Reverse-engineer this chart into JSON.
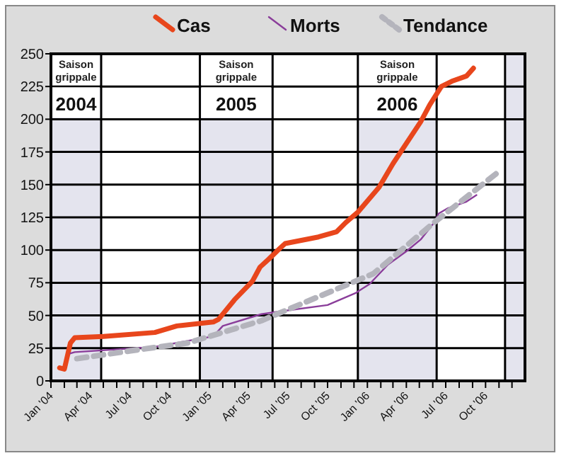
{
  "chart_data": {
    "type": "line",
    "legend": "top",
    "grid": "y",
    "xlim": [
      "2004-01-01",
      "2006-12-31"
    ],
    "xticks": [
      {
        "value": "2004-01",
        "label": "Jan '04"
      },
      {
        "value": "2004-02",
        "label": null
      },
      {
        "value": "2004-03",
        "label": null
      },
      {
        "value": "2004-04",
        "label": "Apr '04"
      },
      {
        "value": "2004-05",
        "label": null
      },
      {
        "value": "2004-06",
        "label": null
      },
      {
        "value": "2004-07",
        "label": "Jul '04"
      },
      {
        "value": "2004-08",
        "label": null
      },
      {
        "value": "2004-09",
        "label": null
      },
      {
        "value": "2004-10",
        "label": "Oct '04"
      },
      {
        "value": "2004-11",
        "label": null
      },
      {
        "value": "2004-12",
        "label": null
      },
      {
        "value": "2005-01",
        "label": "Jan '05"
      },
      {
        "value": "2005-02",
        "label": null
      },
      {
        "value": "2005-03",
        "label": null
      },
      {
        "value": "2005-04",
        "label": "Apr '05"
      },
      {
        "value": "2005-05",
        "label": null
      },
      {
        "value": "2005-06",
        "label": null
      },
      {
        "value": "2005-07",
        "label": "Jul '05"
      },
      {
        "value": "2005-08",
        "label": null
      },
      {
        "value": "2005-09",
        "label": null
      },
      {
        "value": "2005-10",
        "label": "Oct '05"
      },
      {
        "value": "2005-11",
        "label": null
      },
      {
        "value": "2005-12",
        "label": null
      },
      {
        "value": "2006-01",
        "label": "Jan '06"
      },
      {
        "value": "2006-02",
        "label": null
      },
      {
        "value": "2006-03",
        "label": null
      },
      {
        "value": "2006-04",
        "label": "Apr '06"
      },
      {
        "value": "2006-05",
        "label": null
      },
      {
        "value": "2006-06",
        "label": null
      },
      {
        "value": "2006-07",
        "label": "Jul '06"
      },
      {
        "value": "2006-08",
        "label": null
      },
      {
        "value": "2006-09",
        "label": null
      },
      {
        "value": "2006-10",
        "label": "Oct '06"
      },
      {
        "value": "2006-11",
        "label": null
      },
      {
        "value": "2006-12",
        "label": null
      }
    ],
    "ylim": [
      0,
      250
    ],
    "yticks": [
      0,
      25,
      50,
      75,
      100,
      125,
      150,
      175,
      200,
      225,
      250
    ],
    "bands": [
      {
        "axis": "x",
        "from": "2004-01-01",
        "to": "2004-04-26",
        "label": "Saison grippale 2004",
        "color": "#e4e4ee"
      },
      {
        "axis": "x",
        "from": "2004-12-10",
        "to": "2005-05-27",
        "label": "Saison grippale 2005",
        "color": "#e4e4ee"
      },
      {
        "axis": "x",
        "from": "2005-12-10",
        "to": "2006-06-10",
        "label": "Saison grippale 2006",
        "color": "#e4e4ee"
      },
      {
        "axis": "x",
        "from": "2006-11-15",
        "to": "2006-12-31",
        "label": null,
        "color": "#e4e4ee"
      }
    ],
    "series": [
      {
        "name": "Cas",
        "color": "#e8461c",
        "line_style": "solid",
        "x": [
          "2004-01-21",
          "2004-02-01",
          "2004-02-15",
          "2004-02-25",
          "2004-05-01",
          "2004-08-28",
          "2004-10-18",
          "2005-01-10",
          "2005-01-22",
          "2005-02-28",
          "2005-04-10",
          "2005-04-28",
          "2005-05-18",
          "2005-06-12",
          "2005-06-25",
          "2005-09-10",
          "2005-10-22",
          "2005-11-12",
          "2005-12-10",
          "2006-01-28",
          "2006-03-01",
          "2006-05-04",
          "2006-05-25",
          "2006-06-21",
          "2006-07-15",
          "2006-08-18",
          "2006-09-03"
        ],
        "values": [
          10,
          9,
          29,
          33,
          34,
          37,
          42,
          45,
          47,
          62,
          76,
          87,
          93,
          101,
          105,
          110,
          114,
          121,
          129,
          148,
          166,
          198,
          211,
          225,
          229,
          233,
          239
        ]
      },
      {
        "name": "Morts",
        "color": "#8a3d9a",
        "line_style": "solid",
        "x": [
          "2004-02-15",
          "2004-02-25",
          "2004-08-28",
          "2004-12-06",
          "2005-01-10",
          "2005-02-01",
          "2005-05-01",
          "2005-06-12",
          "2005-10-01",
          "2005-12-04",
          "2006-01-06",
          "2006-02-18",
          "2006-04-01",
          "2006-05-04",
          "2006-06-04",
          "2006-06-15",
          "2006-07-06",
          "2006-08-18",
          "2006-09-10"
        ],
        "values": [
          21,
          22,
          26,
          32,
          34,
          42,
          51,
          53,
          58,
          67,
          74,
          89,
          99,
          108,
          121,
          128,
          132,
          137,
          142
        ]
      },
      {
        "name": "Tendance",
        "color": "#b4b4bc",
        "line_style": "dashed",
        "x": [
          "2004-03-01",
          "2004-07-03",
          "2004-11-12",
          "2005-05-01",
          "2006-01-15",
          "2006-06-04",
          "2006-10-28"
        ],
        "values": [
          17,
          23,
          29,
          46,
          82,
          121,
          159
        ]
      }
    ]
  }
}
